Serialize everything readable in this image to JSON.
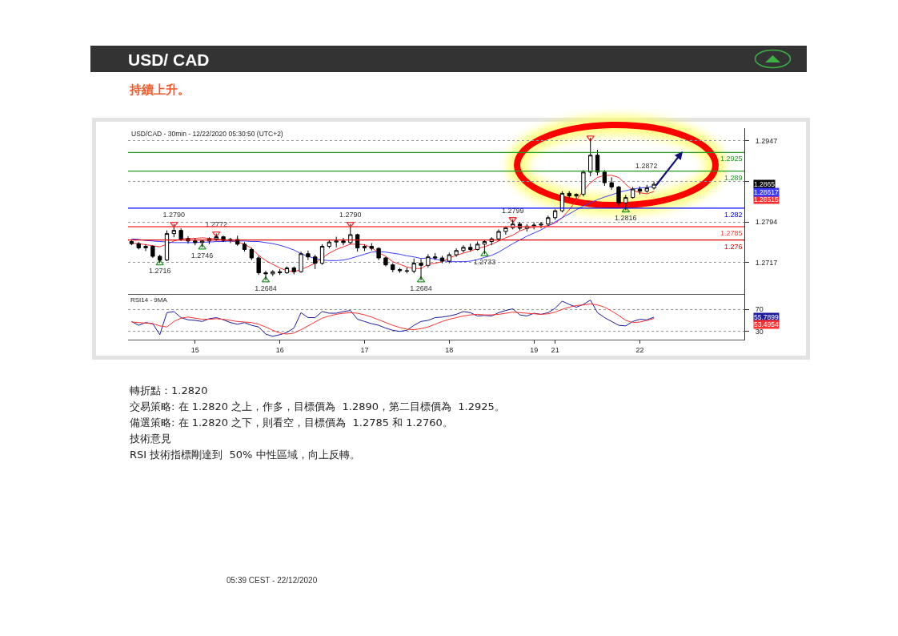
{
  "chart_data": [
    {
      "type": "candlestick",
      "title": "USD/ CAD",
      "subtitle": "持續上升。",
      "categories": [
        null,
        null,
        null,
        null,
        null,
        null,
        null,
        null,
        null,
        null,
        null,
        null,
        null,
        null,
        null,
        null,
        null,
        null,
        null,
        null,
        null,
        null,
        null,
        null,
        null,
        null,
        null,
        null,
        null,
        null,
        null,
        null,
        null,
        null,
        null,
        null,
        null,
        null,
        null,
        null,
        null,
        null,
        null,
        null,
        null,
        null,
        null,
        null,
        null,
        null,
        null,
        null,
        null,
        null,
        null,
        null,
        null,
        null,
        null,
        null,
        null,
        null,
        null,
        null,
        null,
        null,
        null,
        null,
        null,
        null,
        null,
        null,
        null,
        null,
        null
      ],
      "ohlc": [
        [
          1.2757,
          1.276,
          1.275,
          1.2753
        ],
        [
          1.2753,
          1.2756,
          1.2742,
          1.2745
        ],
        [
          1.2745,
          1.2752,
          1.2739,
          1.2748
        ],
        [
          1.2748,
          1.275,
          1.2726,
          1.2729
        ],
        [
          1.2729,
          1.2732,
          1.2716,
          1.2722
        ],
        [
          1.2722,
          1.2778,
          1.272,
          1.2772
        ],
        [
          1.2772,
          1.279,
          1.2765,
          1.2778
        ],
        [
          1.2778,
          1.2782,
          1.2758,
          1.2762
        ],
        [
          1.2762,
          1.2767,
          1.2753,
          1.2758
        ],
        [
          1.2758,
          1.2763,
          1.275,
          1.2755
        ],
        [
          1.2755,
          1.276,
          1.2746,
          1.2758
        ],
        [
          1.2758,
          1.2765,
          1.2752,
          1.2762
        ],
        [
          1.2762,
          1.2772,
          1.2758,
          1.2766
        ],
        [
          1.2766,
          1.2768,
          1.2756,
          1.2759
        ],
        [
          1.2759,
          1.2764,
          1.2754,
          1.2761
        ],
        [
          1.2761,
          1.2768,
          1.2749,
          1.2752
        ],
        [
          1.2752,
          1.2756,
          1.2738,
          1.2742
        ],
        [
          1.2742,
          1.2745,
          1.2722,
          1.2726
        ],
        [
          1.2726,
          1.273,
          1.2694,
          1.2698
        ],
        [
          1.2698,
          1.2702,
          1.2684,
          1.2696
        ],
        [
          1.2696,
          1.2703,
          1.2692,
          1.27
        ],
        [
          1.27,
          1.2705,
          1.2694,
          1.2698
        ],
        [
          1.2698,
          1.271,
          1.2696,
          1.2707
        ],
        [
          1.2707,
          1.271,
          1.2695,
          1.27
        ],
        [
          1.27,
          1.2738,
          1.2698,
          1.2734
        ],
        [
          1.2734,
          1.274,
          1.2722,
          1.2728
        ],
        [
          1.2728,
          1.2732,
          1.2705,
          1.2716
        ],
        [
          1.2716,
          1.2752,
          1.2713,
          1.2748
        ],
        [
          1.2748,
          1.276,
          1.2744,
          1.2756
        ],
        [
          1.2756,
          1.2766,
          1.2746,
          1.2758
        ],
        [
          1.2758,
          1.2764,
          1.275,
          1.2755
        ],
        [
          1.2755,
          1.279,
          1.2752,
          1.277
        ],
        [
          1.277,
          1.2772,
          1.2738,
          1.2745
        ],
        [
          1.2745,
          1.2752,
          1.2739,
          1.2748
        ],
        [
          1.2748,
          1.2754,
          1.274,
          1.2744
        ],
        [
          1.2744,
          1.2746,
          1.2722,
          1.2726
        ],
        [
          1.2726,
          1.2728,
          1.271,
          1.2713
        ],
        [
          1.2713,
          1.2716,
          1.2699,
          1.2704
        ],
        [
          1.2704,
          1.2707,
          1.2698,
          1.2702
        ],
        [
          1.2702,
          1.2708,
          1.2697,
          1.2701
        ],
        [
          1.2701,
          1.2725,
          1.2697,
          1.2716
        ],
        [
          1.2716,
          1.2724,
          1.2684,
          1.2712
        ],
        [
          1.2712,
          1.2733,
          1.2708,
          1.2728
        ],
        [
          1.2728,
          1.2735,
          1.2722,
          1.2726
        ],
        [
          1.2726,
          1.273,
          1.2716,
          1.272
        ],
        [
          1.272,
          1.2736,
          1.2716,
          1.2732
        ],
        [
          1.2732,
          1.2744,
          1.2728,
          1.274
        ],
        [
          1.274,
          1.275,
          1.2736,
          1.2746
        ],
        [
          1.2746,
          1.2753,
          1.2738,
          1.2742
        ],
        [
          1.2742,
          1.2757,
          1.274,
          1.2752
        ],
        [
          1.2752,
          1.276,
          1.2733,
          1.2757
        ],
        [
          1.2757,
          1.2765,
          1.275,
          1.2762
        ],
        [
          1.2762,
          1.278,
          1.2758,
          1.2776
        ],
        [
          1.2776,
          1.2786,
          1.277,
          1.2783
        ],
        [
          1.2783,
          1.2799,
          1.278,
          1.279
        ],
        [
          1.279,
          1.2794,
          1.2778,
          1.2782
        ],
        [
          1.2782,
          1.279,
          1.2776,
          1.2786
        ],
        [
          1.2786,
          1.2793,
          1.278,
          1.2788
        ],
        [
          1.2788,
          1.2794,
          1.2782,
          1.279
        ],
        [
          1.279,
          1.2806,
          1.2786,
          1.2802
        ],
        [
          1.2802,
          1.2818,
          1.2798,
          1.2815
        ],
        [
          1.2815,
          1.2852,
          1.2812,
          1.2848
        ],
        [
          1.2848,
          1.2852,
          1.2838,
          1.2843
        ],
        [
          1.2843,
          1.2848,
          1.2838,
          1.2846
        ],
        [
          1.2846,
          1.2892,
          1.2842,
          1.2888
        ],
        [
          1.2888,
          1.2953,
          1.288,
          1.292
        ],
        [
          1.292,
          1.293,
          1.2882,
          1.2888
        ],
        [
          1.2888,
          1.2892,
          1.2862,
          1.2868
        ],
        [
          1.2868,
          1.2878,
          1.2855,
          1.286
        ],
        [
          1.286,
          1.2862,
          1.2825,
          1.283
        ],
        [
          1.283,
          1.2845,
          1.2816,
          1.284
        ],
        [
          1.284,
          1.286,
          1.2838,
          1.2856
        ],
        [
          1.2856,
          1.2861,
          1.2846,
          1.2852
        ],
        [
          1.2852,
          1.2864,
          1.2849,
          1.2858
        ],
        [
          1.2858,
          1.287,
          1.2855,
          1.2865
        ]
      ],
      "color": "#000000",
      "series": [
        {
          "type": "line",
          "color": "#ff2a2a",
          "values": [
            1.2754,
            1.2753,
            1.2751,
            1.2749,
            1.2747,
            1.2752,
            1.2758,
            1.2762,
            1.2763,
            1.2763,
            1.2764,
            1.2763,
            1.2762,
            1.276,
            1.2758,
            1.2756,
            1.2752,
            1.2744,
            1.2731,
            1.2721,
            1.2714,
            1.2707,
            1.2702,
            1.27,
            1.2704,
            1.271,
            1.2716,
            1.2726,
            1.2735,
            1.2742,
            1.2747,
            1.2752,
            1.2752,
            1.2751,
            1.2745,
            1.2736,
            1.2729,
            1.2719,
            1.2714,
            1.2709,
            1.2706,
            1.2706,
            1.2714,
            1.2716,
            1.2719,
            1.2726,
            1.2731,
            1.2735,
            1.2739,
            1.2744,
            1.2747,
            1.2752,
            1.2758,
            1.2764,
            1.2769,
            1.2777,
            1.2782,
            1.2784,
            1.2785,
            1.2787,
            1.2792,
            1.2802,
            1.2817,
            1.2835,
            1.2853,
            1.2868,
            1.2878,
            1.2882,
            1.2882,
            1.2878,
            1.2865,
            1.2854,
            1.2849,
            1.2847,
            1.28515
          ]
        },
        {
          "type": "line",
          "color": "#3b3bff",
          "values": [
            1.2762,
            1.2761,
            1.2759,
            1.2758,
            1.2757,
            1.2756,
            1.2755,
            1.2755,
            1.2755,
            1.2755,
            1.2756,
            1.2756,
            1.2757,
            1.2757,
            1.2758,
            1.2758,
            1.2758,
            1.2757,
            1.2757,
            1.2755,
            1.2753,
            1.275,
            1.2746,
            1.2741,
            1.2734,
            1.2729,
            1.2725,
            1.2722,
            1.2721,
            1.2721,
            1.2722,
            1.2725,
            1.2729,
            1.2733,
            1.2737,
            1.2738,
            1.2737,
            1.2735,
            1.2733,
            1.273,
            1.2728,
            1.2725,
            1.2726,
            1.2724,
            1.2721,
            1.2719,
            1.2719,
            1.2719,
            1.272,
            1.2723,
            1.2727,
            1.2731,
            1.2737,
            1.2745,
            1.2753,
            1.276,
            1.2767,
            1.2773,
            1.2779,
            1.2786,
            1.2794,
            1.2802,
            1.2809,
            1.2817,
            1.2824,
            1.283,
            1.2836,
            1.2841,
            1.2845,
            1.285,
            1.2853,
            1.2856,
            1.2858,
            1.2859,
            1.28617
          ]
        },
        {
          "type": "scatter",
          "marker": "triangle",
          "color": "#ff3030",
          "values": [
            null,
            null,
            null,
            null,
            null,
            null,
            1.279,
            null,
            null,
            null,
            null,
            null,
            1.2772,
            null,
            null,
            null,
            null,
            null,
            null,
            null,
            null,
            null,
            null,
            null,
            null,
            null,
            null,
            null,
            null,
            null,
            null,
            1.279,
            null,
            null,
            null,
            null,
            null,
            null,
            null,
            null,
            null,
            null,
            null,
            null,
            null,
            null,
            null,
            null,
            null,
            null,
            null,
            null,
            null,
            null,
            1.2799,
            null,
            null,
            null,
            null,
            null,
            null,
            null,
            null,
            null,
            null,
            1.2953,
            null,
            null,
            null,
            null,
            null,
            null,
            null,
            null,
            null
          ],
          "value_labels": [
            null,
            null,
            null,
            null,
            null,
            null,
            "1.2790",
            null,
            null,
            null,
            null,
            null,
            "1.2772",
            null,
            null,
            null,
            null,
            null,
            null,
            null,
            null,
            null,
            null,
            null,
            null,
            null,
            null,
            null,
            null,
            null,
            null,
            "1.2790",
            null,
            null,
            null,
            null,
            null,
            null,
            null,
            null,
            null,
            null,
            null,
            null,
            null,
            null,
            null,
            null,
            null,
            null,
            null,
            null,
            null,
            null,
            "1.2799",
            null,
            null,
            null,
            null,
            null,
            null,
            null,
            null,
            null,
            null,
            null,
            null,
            null,
            null,
            null,
            null,
            null,
            null,
            null,
            null
          ]
        },
        {
          "type": "scatter",
          "marker": "triangle",
          "color": "#2a9a2a",
          "values": [
            null,
            null,
            null,
            null,
            1.2716,
            null,
            null,
            null,
            null,
            null,
            1.2746,
            null,
            null,
            null,
            null,
            null,
            null,
            null,
            null,
            1.2684,
            null,
            null,
            null,
            null,
            null,
            null,
            null,
            null,
            null,
            null,
            null,
            null,
            null,
            null,
            null,
            null,
            null,
            null,
            null,
            null,
            null,
            1.2684,
            null,
            null,
            null,
            null,
            null,
            null,
            null,
            null,
            1.2733,
            null,
            null,
            null,
            null,
            null,
            null,
            null,
            null,
            null,
            null,
            null,
            null,
            null,
            null,
            null,
            null,
            null,
            null,
            null,
            1.2816,
            null,
            null,
            null,
            null
          ],
          "value_labels": [
            null,
            null,
            null,
            null,
            "1.2716",
            null,
            null,
            null,
            null,
            null,
            "1.2746",
            null,
            null,
            null,
            null,
            null,
            null,
            null,
            null,
            "1.2684",
            null,
            null,
            null,
            null,
            null,
            null,
            null,
            null,
            null,
            null,
            null,
            null,
            null,
            null,
            null,
            null,
            null,
            null,
            null,
            null,
            null,
            "1.2684",
            null,
            null,
            null,
            null,
            null,
            null,
            null,
            null,
            "1.2733",
            null,
            null,
            null,
            null,
            null,
            null,
            null,
            null,
            null,
            null,
            null,
            null,
            null,
            null,
            null,
            null,
            null,
            null,
            null,
            "1.2816",
            null,
            null,
            null,
            null
          ]
        }
      ],
      "ylim": [
        1.2658,
        1.2971
      ],
      "yticks": [
        1.2717,
        1.2794,
        {
          "value": 1.287,
          "label": null
        },
        1.2947
      ],
      "ref_lines": [
        {
          "axis": "y",
          "value": 1.2925,
          "label": "1.2925",
          "color": "#1f9e1f"
        },
        {
          "axis": "y",
          "value": 1.289,
          "label": "1.289",
          "color": "#1f9e1f"
        },
        {
          "axis": "y",
          "value": 1.282,
          "label": "1.282",
          "color": "#0000ff"
        },
        {
          "axis": "y",
          "value": 1.2785,
          "label": "1.2785",
          "color": "#ff4646"
        },
        {
          "axis": "y",
          "value": 1.276,
          "label": "1.276",
          "color": "#e00000"
        }
      ],
      "grid": "y",
      "tick_labels": "y",
      "line_style": "solid",
      "annotations": [
        "USD/CAD - 30min - 12/22/2020 05:30:50 (UTC+2)",
        "1.2872",
        "1.2865",
        "1.28515",
        "1.28617",
        "轉折點：1.2820",
        "交易策略: 在 1.2820 之上，作多，目標價為  1.2890，第二目標價為  1.2925。",
        "備選策略: 在 1.2820 之下，則看空，目標價為  1.2785 和 1.2760。",
        "技術意見",
        "RSI 技術指標剛達到  50% 中性區域，向上反轉。",
        "05:39 CEST - 22/12/2020"
      ]
    },
    {
      "type": "line",
      "title": "RSI14 - 9MA",
      "categories": [
        null,
        null,
        null,
        null,
        null,
        null,
        null,
        null,
        null,
        "15",
        null,
        null,
        null,
        null,
        null,
        null,
        null,
        null,
        null,
        null,
        null,
        "16",
        null,
        null,
        null,
        null,
        null,
        null,
        null,
        null,
        null,
        null,
        null,
        "17",
        null,
        null,
        null,
        null,
        null,
        null,
        null,
        null,
        null,
        null,
        null,
        "18",
        null,
        null,
        null,
        null,
        null,
        null,
        null,
        null,
        null,
        null,
        null,
        "19",
        null,
        null,
        "21",
        null,
        null,
        null,
        null,
        null,
        null,
        null,
        null,
        null,
        null,
        null,
        "22",
        null,
        null
      ],
      "series": [
        {
          "color": "#1a1a9a",
          "values": [
            48,
            41,
            46,
            44,
            24,
            64,
            66,
            55,
            51,
            50,
            48,
            53,
            55,
            51,
            46,
            43,
            46,
            41,
            38,
            25,
            21,
            24,
            28,
            36,
            64,
            55,
            55,
            66,
            63,
            63,
            66,
            68,
            52,
            48,
            44,
            41,
            36,
            32,
            30,
            32,
            41,
            48,
            50,
            55,
            56,
            58,
            61,
            66,
            64,
            58,
            59,
            58,
            64,
            68,
            71,
            60,
            58,
            63,
            61,
            64,
            72,
            85,
            79,
            74,
            79,
            87,
            64,
            55,
            48,
            41,
            40,
            48,
            52,
            51,
            55.7899
          ]
        },
        {
          "color": "#ff3030",
          "values": [
            47,
            46,
            45,
            44,
            40,
            38,
            48,
            54,
            56,
            54,
            52,
            52,
            53,
            52,
            50,
            48,
            47,
            46,
            43,
            38,
            32,
            27,
            25,
            27,
            33,
            40,
            47,
            54,
            58,
            61,
            63,
            64,
            63,
            60,
            56,
            51,
            46,
            41,
            37,
            34,
            33,
            35,
            38,
            43,
            48,
            52,
            55,
            58,
            60,
            61,
            60,
            60,
            61,
            63,
            65,
            64,
            63,
            62,
            61,
            62,
            65,
            70,
            74,
            77,
            78,
            80,
            78,
            74,
            67,
            59,
            50,
            46,
            47,
            50,
            53.4954
          ]
        }
      ],
      "ylim": [
        15,
        98
      ],
      "yticks": [
        30,
        70
      ],
      "grid": "y",
      "line_style": "solid",
      "annotations": [
        "55.7899",
        "53.4954"
      ]
    }
  ]
}
